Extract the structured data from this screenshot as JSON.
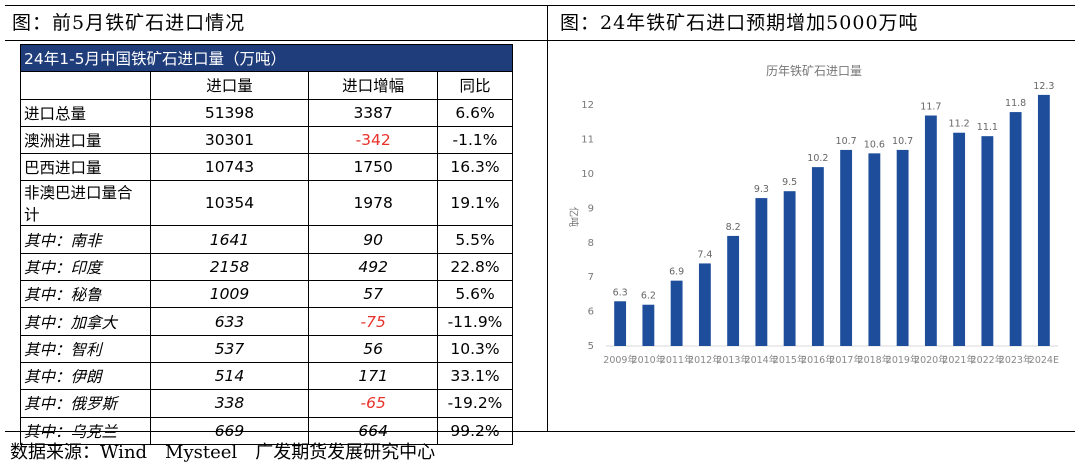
{
  "left_panel": {
    "title": "图：前5月铁矿石进口情况"
  },
  "right_panel": {
    "title": "图：24年铁矿石进口预期增加5000万吨"
  },
  "table": {
    "title": "24年1-5月中国铁矿石进口量（万吨）",
    "headers": [
      "",
      "进口量",
      "进口增幅",
      "同比"
    ],
    "rows": [
      {
        "label": "进口总量",
        "volume": "51398",
        "change": "3387",
        "yoy": "6.6%",
        "italic": false,
        "negative": false
      },
      {
        "label": "澳洲进口量",
        "volume": "30301",
        "change": "-342",
        "yoy": "-1.1%",
        "italic": false,
        "negative": true
      },
      {
        "label": "巴西进口量",
        "volume": "10743",
        "change": "1750",
        "yoy": "16.3%",
        "italic": false,
        "negative": false
      },
      {
        "label": "非澳巴进口量合计",
        "volume": "10354",
        "change": "1978",
        "yoy": "19.1%",
        "italic": false,
        "negative": false
      },
      {
        "label": "其中：南非",
        "volume": "1641",
        "change": "90",
        "yoy": "5.5%",
        "italic": true,
        "negative": false
      },
      {
        "label": "其中：印度",
        "volume": "2158",
        "change": "492",
        "yoy": "22.8%",
        "italic": true,
        "negative": false
      },
      {
        "label": "其中：秘鲁",
        "volume": "1009",
        "change": "57",
        "yoy": "5.6%",
        "italic": true,
        "negative": false
      },
      {
        "label": "其中：加拿大",
        "volume": "633",
        "change": "-75",
        "yoy": "-11.9%",
        "italic": true,
        "negative": true
      },
      {
        "label": "其中：智利",
        "volume": "537",
        "change": "56",
        "yoy": "10.3%",
        "italic": true,
        "negative": false
      },
      {
        "label": "其中：伊朗",
        "volume": "514",
        "change": "171",
        "yoy": "33.1%",
        "italic": true,
        "negative": false
      },
      {
        "label": "其中：俄罗斯",
        "volume": "338",
        "change": "-65",
        "yoy": "-19.2%",
        "italic": true,
        "negative": true
      },
      {
        "label": "其中：乌克兰",
        "volume": "669",
        "change": "664",
        "yoy": "99.2%",
        "italic": true,
        "negative": false
      }
    ]
  },
  "source": "数据来源：Wind　Mysteel　广发期货发展研究中心",
  "chart_data": {
    "type": "bar",
    "title": "历年铁矿石进口量",
    "ylabel": "亿吨",
    "xlabel": "",
    "categories": [
      "2009年",
      "2010年",
      "2011年",
      "2012年",
      "2013年",
      "2014年",
      "2015年",
      "2016年",
      "2017年",
      "2018年",
      "2019年",
      "2020年",
      "2021年",
      "2022年",
      "2023年",
      "2024E"
    ],
    "values": [
      6.3,
      6.2,
      6.9,
      7.4,
      8.2,
      9.3,
      9.5,
      10.2,
      10.7,
      10.6,
      10.7,
      11.7,
      11.2,
      11.1,
      11.8,
      12.3
    ],
    "ylim": [
      5,
      12.5
    ],
    "yticks": [
      5,
      6,
      7,
      8,
      9,
      10,
      11,
      12
    ],
    "grid": false,
    "legend": "none",
    "bar_color": "#1e4d9b"
  }
}
